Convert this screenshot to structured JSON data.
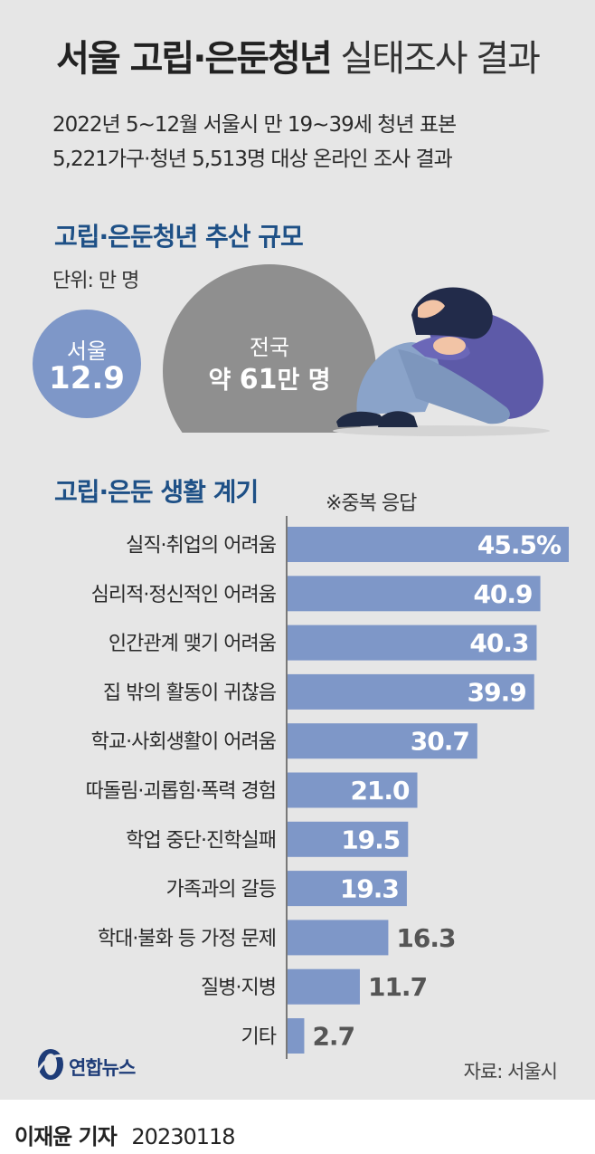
{
  "header": {
    "title_bold": "서울 고립·은둔청년",
    "title_light": "실태조사 결과",
    "subtitle_line1": "2022년 5~12월 서울시 만 19~39세 청년 표본",
    "subtitle_line2": "5,221가구·청년 5,513명 대상 온라인 조사 결과"
  },
  "estimate": {
    "heading": "고립·은둔청년 추산 규모",
    "unit": "단위: 만 명",
    "seoul_label": "서울",
    "seoul_value": "12.9",
    "national_label": "전국",
    "national_value_prefix": "약 ",
    "national_value": "61",
    "national_value_suffix": "만 명"
  },
  "reasons": {
    "heading": "고립·은둔 생활 계기",
    "note": "※중복 응답"
  },
  "chart_data": {
    "type": "bar",
    "orientation": "horizontal",
    "categories": [
      "실직·취업의 어려움",
      "심리적·정신적인 어려움",
      "인간관계 맺기 어려움",
      "집 밖의 활동이 귀찮음",
      "학교·사회생활이 어려움",
      "따돌림·괴롭힘·폭력 경험",
      "학업 중단·진학실패",
      "가족과의 갈등",
      "학대·불화 등 가정 문제",
      "질병·지병",
      "기타"
    ],
    "values": [
      45.5,
      40.9,
      40.3,
      39.9,
      30.7,
      21.0,
      19.5,
      19.3,
      16.3,
      11.7,
      2.7
    ],
    "value_labels": [
      "45.5%",
      "40.9",
      "40.3",
      "39.9",
      "30.7",
      "21.0",
      "19.5",
      "19.3",
      "16.3",
      "11.7",
      "2.7"
    ],
    "xlim": [
      0,
      45.5
    ],
    "bar_color": "#7e97c8",
    "grid": false
  },
  "colors": {
    "title_blue": "#1e5086",
    "seoul_bubble": "#7e97c8",
    "national_bubble": "#8f8f8f",
    "panel_bg": "#e6e6e6"
  },
  "footer": {
    "logo_text": "연합뉴스",
    "source": "자료: 서울시",
    "reporter": "이재윤 기자",
    "date": "20230118"
  }
}
